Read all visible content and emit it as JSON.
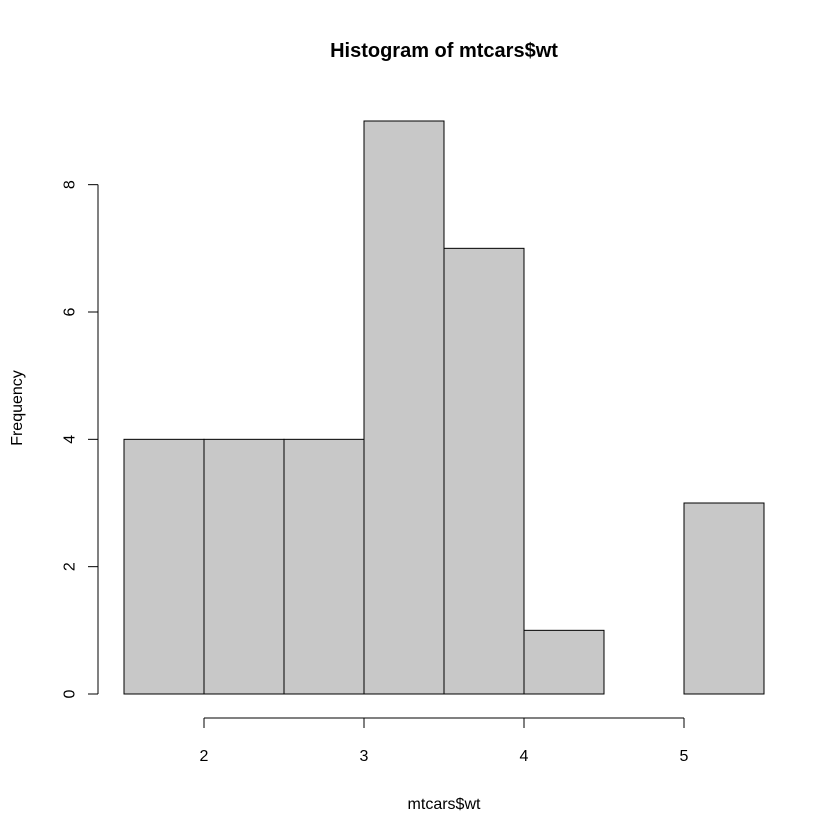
{
  "chart_data": {
    "type": "bar",
    "title": "Histogram of mtcars$wt",
    "xlabel": "mtcars$wt",
    "ylabel": "Frequency",
    "bins": [
      {
        "from": 1.5,
        "to": 2.0,
        "count": 4
      },
      {
        "from": 2.0,
        "to": 2.5,
        "count": 4
      },
      {
        "from": 2.5,
        "to": 3.0,
        "count": 4
      },
      {
        "from": 3.0,
        "to": 3.5,
        "count": 9
      },
      {
        "from": 3.5,
        "to": 4.0,
        "count": 7
      },
      {
        "from": 4.0,
        "to": 4.5,
        "count": 1
      },
      {
        "from": 4.5,
        "to": 5.0,
        "count": 0
      },
      {
        "from": 5.0,
        "to": 5.5,
        "count": 3
      }
    ],
    "xlim": [
      1.5,
      5.5
    ],
    "ylim": [
      0,
      9
    ],
    "x_ticks": [
      2,
      3,
      4,
      5
    ],
    "y_ticks": [
      0,
      2,
      4,
      6,
      8
    ],
    "x_tick_labels": [
      "2",
      "3",
      "4",
      "5"
    ],
    "y_tick_labels": [
      "0",
      "2",
      "4",
      "6",
      "8"
    ],
    "bar_color": "#c8c8c8",
    "grid": false,
    "legend": "none"
  }
}
